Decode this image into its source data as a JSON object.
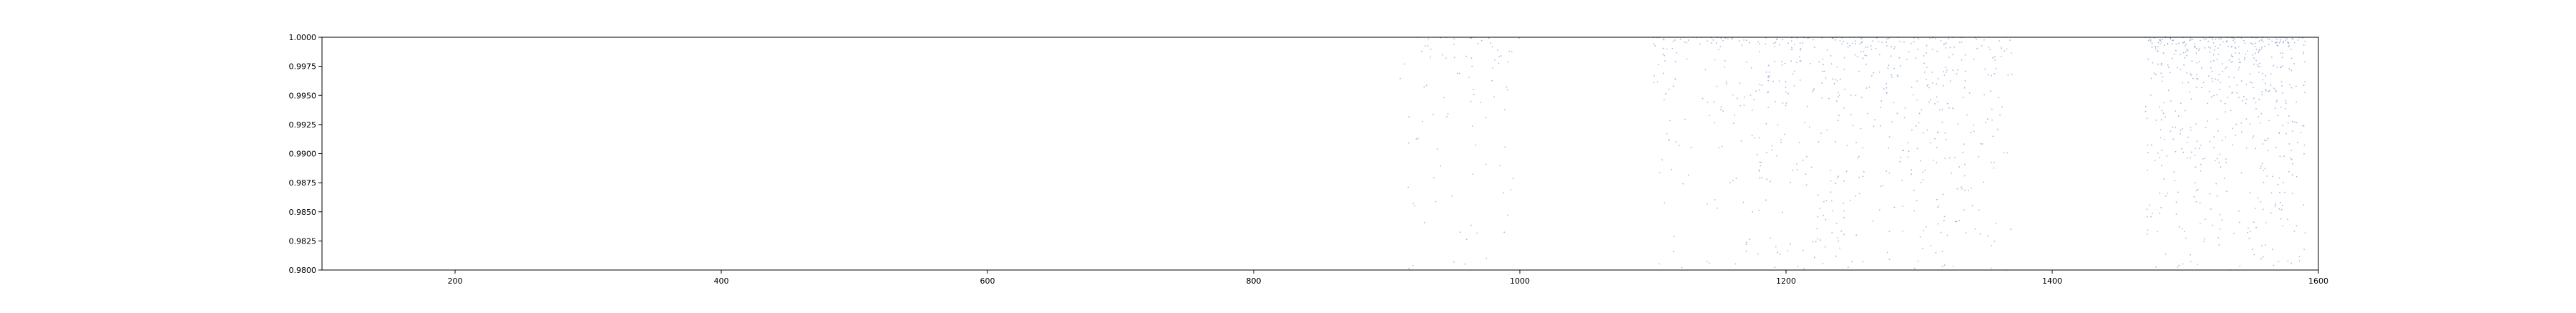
{
  "chart_data": {
    "type": "scatter",
    "xlim": [
      100,
      1600
    ],
    "ylim": [
      0.98,
      1.0
    ],
    "x_ticks": [
      200,
      400,
      600,
      800,
      1000,
      1200,
      1400,
      1600
    ],
    "x_tick_labels": [
      "200",
      "400",
      "600",
      "800",
      "1000",
      "1200",
      "1400",
      "1600"
    ],
    "y_ticks": [
      0.98,
      0.9825,
      0.985,
      0.9875,
      0.99,
      0.9925,
      0.995,
      0.9975,
      1.0
    ],
    "y_tick_labels": [
      "0.9800",
      "0.9825",
      "0.9850",
      "0.9875",
      "0.9900",
      "0.9925",
      "0.9950",
      "0.9975",
      "1.0000"
    ],
    "grid": false,
    "colors": {
      "points": "#5b7fc0",
      "axes": "#000000"
    },
    "clusters": [
      {
        "x_range": [
          910,
          1000
        ],
        "y_range": [
          0.98,
          1.0
        ],
        "count": 90
      },
      {
        "x_range": [
          1100,
          1180
        ],
        "y_range": [
          0.98,
          1.0
        ],
        "count": 130
      },
      {
        "x_range": [
          1180,
          1370
        ],
        "y_range": [
          0.98,
          1.0
        ],
        "count": 520
      },
      {
        "x_range": [
          1470,
          1590
        ],
        "y_range": [
          0.98,
          1.0
        ],
        "count": 560
      }
    ]
  }
}
